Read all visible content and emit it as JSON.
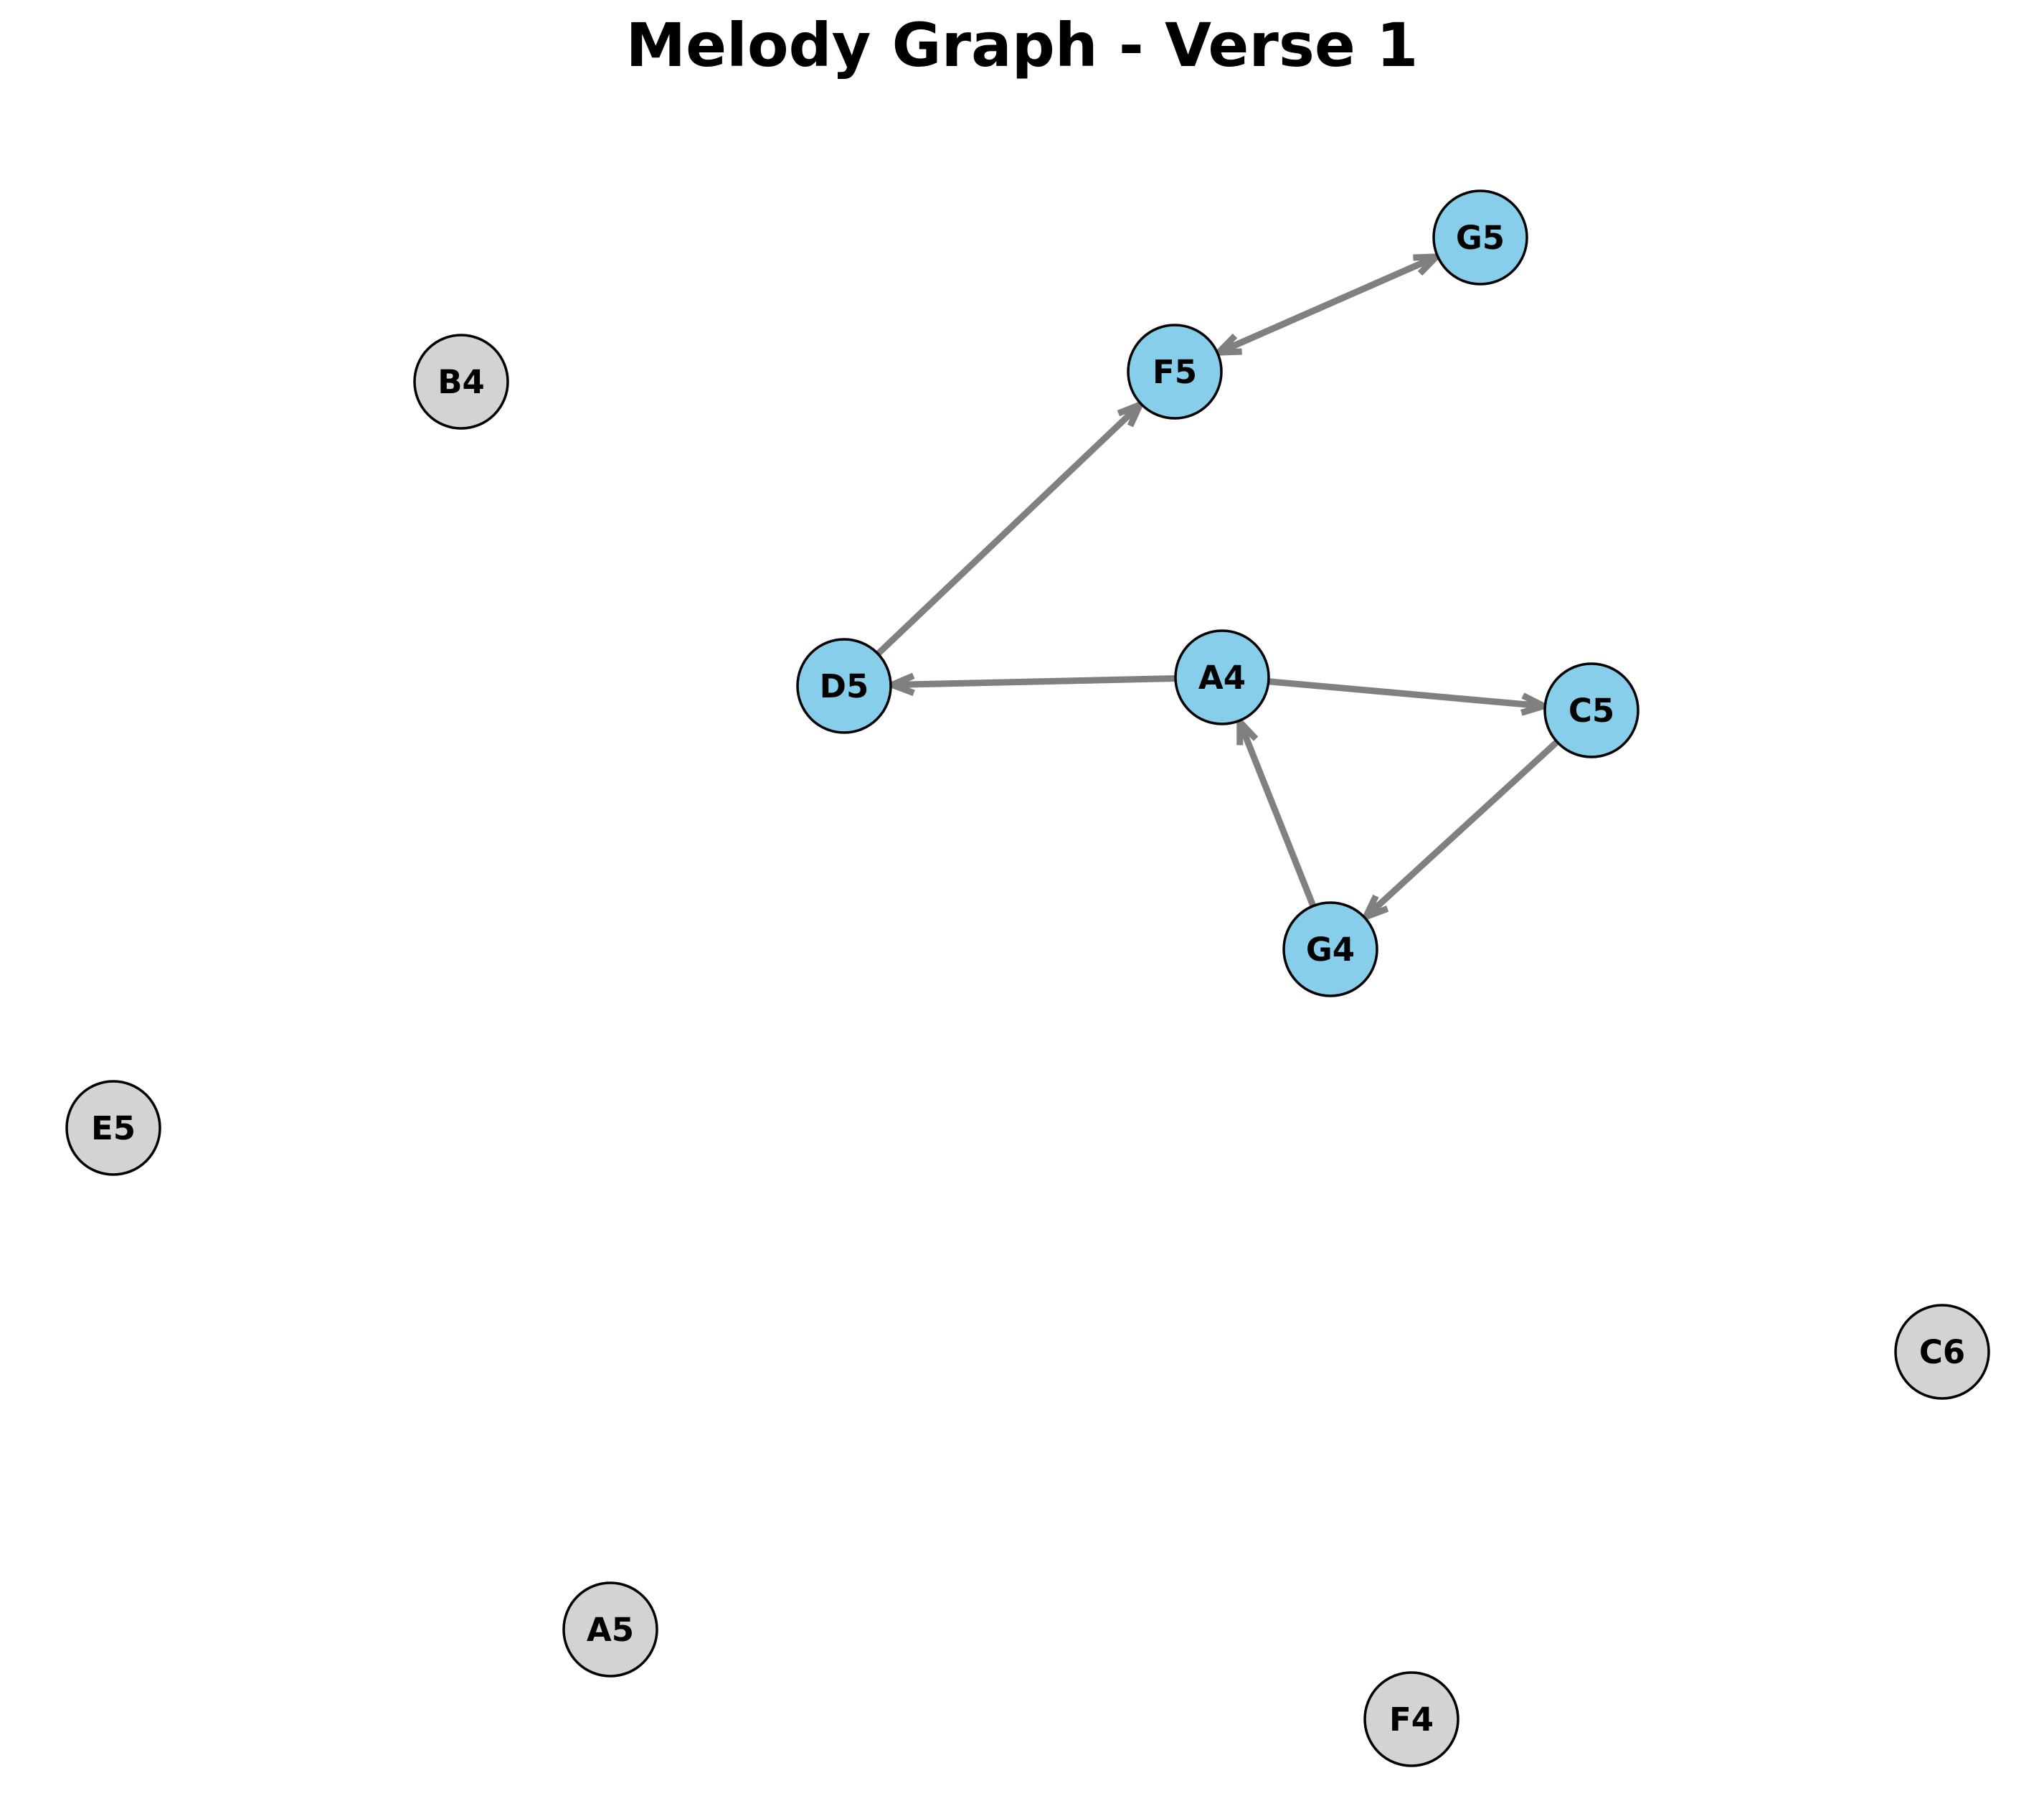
{
  "title": "Melody Graph - Verse 1",
  "colors": {
    "active_node": "#87ceeb",
    "inactive_node": "#d3d3d3",
    "edge": "#808080",
    "outline": "#000000"
  },
  "nodes": [
    {
      "id": "G5",
      "label": "G5",
      "state": "active"
    },
    {
      "id": "F5",
      "label": "F5",
      "state": "active"
    },
    {
      "id": "D5",
      "label": "D5",
      "state": "active"
    },
    {
      "id": "A4",
      "label": "A4",
      "state": "active"
    },
    {
      "id": "C5",
      "label": "C5",
      "state": "active"
    },
    {
      "id": "G4",
      "label": "G4",
      "state": "active"
    },
    {
      "id": "B4",
      "label": "B4",
      "state": "inactive"
    },
    {
      "id": "E5",
      "label": "E5",
      "state": "inactive"
    },
    {
      "id": "C6",
      "label": "C6",
      "state": "inactive"
    },
    {
      "id": "A5",
      "label": "A5",
      "state": "inactive"
    },
    {
      "id": "F4",
      "label": "F4",
      "state": "inactive"
    }
  ],
  "edges": [
    {
      "from": "G4",
      "to": "A4"
    },
    {
      "from": "A4",
      "to": "C5"
    },
    {
      "from": "C5",
      "to": "G4"
    },
    {
      "from": "A4",
      "to": "D5"
    },
    {
      "from": "D5",
      "to": "F5"
    },
    {
      "from": "F5",
      "to": "G5"
    },
    {
      "from": "G5",
      "to": "F5"
    }
  ]
}
